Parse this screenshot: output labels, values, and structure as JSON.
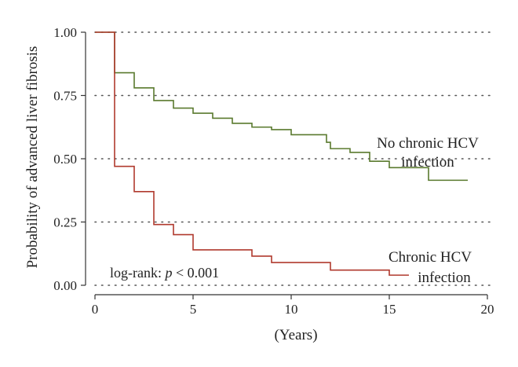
{
  "chart_data": {
    "type": "line",
    "step": true,
    "xlabel": "(Years)",
    "ylabel": "Probability of advanced liver fibrosis",
    "xlim": [
      0,
      20
    ],
    "ylim": [
      0,
      1
    ],
    "x_ticks": [
      0,
      5,
      10,
      15,
      20
    ],
    "y_ticks": [
      "0.00",
      "0.25",
      "0.50",
      "0.75",
      "1.00"
    ],
    "grid": "horizontal dotted",
    "annotation": {
      "prefix": "log-rank: ",
      "p": "p",
      "rest": " < 0.001"
    },
    "series": [
      {
        "label_line1": "No chronic HCV",
        "label_line2": "infection",
        "color": "#5a7a2e",
        "x": [
          0,
          1,
          1,
          2,
          2,
          3,
          3,
          4,
          4,
          5,
          5,
          6,
          6,
          7,
          7,
          8,
          8,
          9,
          9,
          10,
          10,
          11.8,
          11.8,
          12,
          12,
          13,
          13,
          14,
          14,
          15,
          15,
          17,
          17,
          19
        ],
        "y": [
          1.0,
          1.0,
          0.84,
          0.84,
          0.78,
          0.78,
          0.73,
          0.73,
          0.7,
          0.7,
          0.68,
          0.68,
          0.66,
          0.66,
          0.64,
          0.64,
          0.625,
          0.625,
          0.615,
          0.615,
          0.595,
          0.595,
          0.565,
          0.565,
          0.54,
          0.54,
          0.525,
          0.525,
          0.49,
          0.49,
          0.465,
          0.465,
          0.415,
          0.415
        ]
      },
      {
        "label_line1": "Chronic HCV",
        "label_line2": "infection",
        "color": "#b03a2e",
        "x": [
          0,
          1,
          1,
          2,
          2,
          3,
          3,
          4,
          4,
          5,
          5,
          8,
          8,
          9,
          9,
          12,
          12,
          15,
          15,
          16
        ],
        "y": [
          1.0,
          1.0,
          0.47,
          0.47,
          0.37,
          0.37,
          0.24,
          0.24,
          0.2,
          0.2,
          0.14,
          0.14,
          0.115,
          0.115,
          0.09,
          0.09,
          0.06,
          0.06,
          0.04,
          0.04
        ]
      }
    ]
  }
}
